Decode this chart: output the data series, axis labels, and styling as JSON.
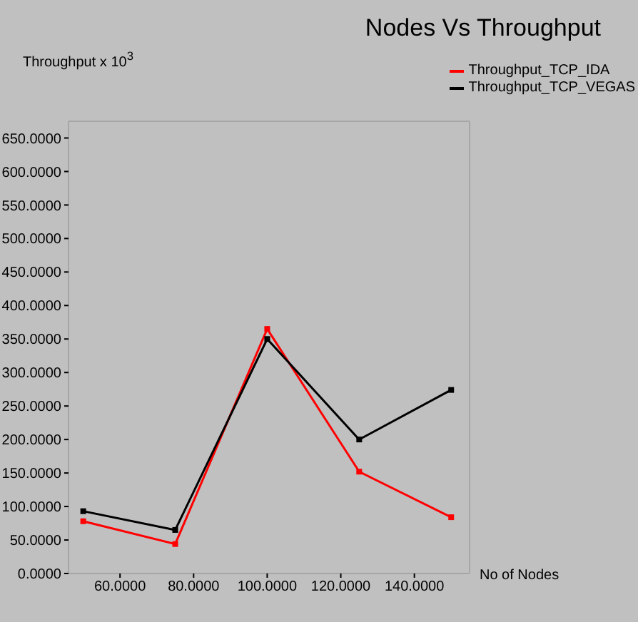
{
  "chart_data": {
    "type": "line",
    "title": "Nodes Vs Throughput",
    "xlabel": "No of Nodes",
    "ylabel": "Throughput x 10$^{3}$",
    "x": [
      50,
      75,
      100,
      125,
      150
    ],
    "series": [
      {
        "name": "Throughput_TCP_IDA",
        "color": "#ff0000",
        "values": [
          78,
          44,
          365,
          152,
          84
        ]
      },
      {
        "name": "Throughput_TCP_VEGAS",
        "color": "#000000",
        "values": [
          93,
          65,
          350,
          200,
          274
        ]
      }
    ],
    "xlim": [
      46,
      155
    ],
    "xticks": [
      {
        "value": 60,
        "label": "60.0000"
      },
      {
        "value": 80,
        "label": "80.0000"
      },
      {
        "value": 100,
        "label": "100.0000"
      },
      {
        "value": 120,
        "label": "120.0000"
      },
      {
        "value": 140,
        "label": "140.0000"
      }
    ],
    "ylim": [
      0,
      675
    ],
    "yticks": [
      {
        "value": 0,
        "label": "0.0000"
      },
      {
        "value": 50,
        "label": "50.0000"
      },
      {
        "value": 100,
        "label": "100.0000"
      },
      {
        "value": 150,
        "label": "150.0000"
      },
      {
        "value": 200,
        "label": "200.0000"
      },
      {
        "value": 250,
        "label": "250.0000"
      },
      {
        "value": 300,
        "label": "300.0000"
      },
      {
        "value": 350,
        "label": "350.0000"
      },
      {
        "value": 400,
        "label": "400.0000"
      },
      {
        "value": 450,
        "label": "450.0000"
      },
      {
        "value": 500,
        "label": "500.0000"
      },
      {
        "value": 550,
        "label": "550.0000"
      },
      {
        "value": 600,
        "label": "600.0000"
      },
      {
        "value": 650,
        "label": "650.0000"
      }
    ],
    "grid": false,
    "legend": "top right",
    "marker": "square",
    "line_style": "solid"
  }
}
